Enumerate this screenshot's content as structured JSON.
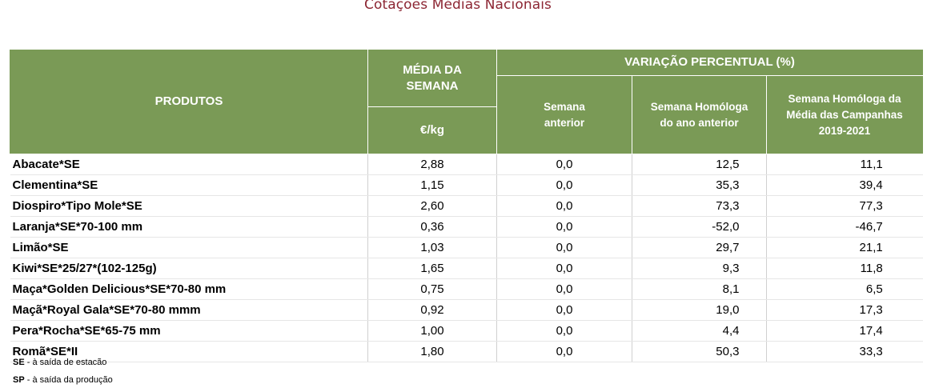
{
  "title": "Cotações Médias Nacionais",
  "header": {
    "produtos": "PRODUTOS",
    "media_semana_line1": "MÉDIA DA",
    "media_semana_line2": "SEMANA",
    "unit": "€/kg",
    "variacao": "VARIAÇÃO PERCENTUAL (%)",
    "semana_anterior_line1": "Semana",
    "semana_anterior_line2": "anterior",
    "homologa_ano_line1": "Semana Homóloga",
    "homologa_ano_line2": "do ano anterior",
    "homologa_campanhas_line1": "Semana Homóloga da",
    "homologa_campanhas_line2": "Média das Campanhas",
    "homologa_campanhas_line3": "2019-2021"
  },
  "rows": [
    {
      "produto": "Abacate*SE",
      "media": "2,88",
      "anterior": "0,0",
      "ano_anterior": "12,5",
      "campanhas": "11,1"
    },
    {
      "produto": "Clementina*SE",
      "media": "1,15",
      "anterior": "0,0",
      "ano_anterior": "35,3",
      "campanhas": "39,4"
    },
    {
      "produto": "Diospiro*Tipo Mole*SE",
      "media": "2,60",
      "anterior": "0,0",
      "ano_anterior": "73,3",
      "campanhas": "77,3"
    },
    {
      "produto": "Laranja*SE*70-100 mm",
      "media": "0,36",
      "anterior": "0,0",
      "ano_anterior": "-52,0",
      "campanhas": "-46,7"
    },
    {
      "produto": "Limão*SE",
      "media": "1,03",
      "anterior": "0,0",
      "ano_anterior": "29,7",
      "campanhas": "21,1"
    },
    {
      "produto": "Kiwi*SE*25/27*(102-125g)",
      "media": "1,65",
      "anterior": "0,0",
      "ano_anterior": "9,3",
      "campanhas": "11,8"
    },
    {
      "produto": "Maça*Golden Delicious*SE*70-80 mm",
      "media": "0,75",
      "anterior": "0,0",
      "ano_anterior": "8,1",
      "campanhas": "6,5"
    },
    {
      "produto": "Maçã*Royal Gala*SE*70-80 mmm",
      "media": "0,92",
      "anterior": "0,0",
      "ano_anterior": "19,0",
      "campanhas": "17,3"
    },
    {
      "produto": "Pera*Rocha*SE*65-75 mm",
      "media": "1,00",
      "anterior": "0,0",
      "ano_anterior": "4,4",
      "campanhas": "17,4"
    },
    {
      "produto": "Romã*SE*II",
      "media": "1,80",
      "anterior": "0,0",
      "ano_anterior": "50,3",
      "campanhas": "33,3"
    }
  ],
  "footnotes": {
    "se_key": "SE",
    "se_text": " - à saída de estação",
    "sp_key": "SP",
    "sp_text": " - à saída da produção"
  },
  "colors": {
    "header_bg": "#7a9a56",
    "title": "#8c2633"
  }
}
